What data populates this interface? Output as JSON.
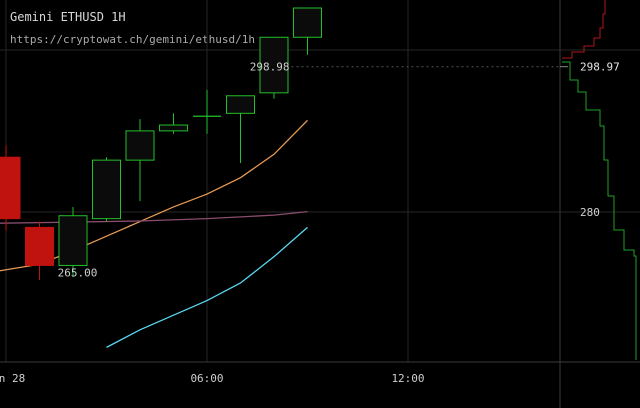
{
  "header": {
    "title": "Gemini ETHUSD 1H",
    "url": "https://cryptowat.ch/gemini/ethusd/1h"
  },
  "colors": {
    "background": "#000000",
    "up": "#22c02a",
    "down": "#c0120e",
    "ema_orange": "#e89a52",
    "ma_purple": "#8a4d6e",
    "ma_cyan": "#58d8f0",
    "grid": "#262626",
    "text": "#cfcfcf"
  },
  "chart_data": {
    "type": "candlestick",
    "price_axis": {
      "ylim": [
        248.5,
        309.0
      ],
      "tick_labels": [
        {
          "value": 280,
          "label": "280"
        }
      ]
    },
    "time_axis": {
      "tick_labels": [
        {
          "time": "00:00",
          "label": "n 28"
        },
        {
          "time": "06:00",
          "label": "06:00"
        },
        {
          "time": "12:00",
          "label": "12:00"
        }
      ]
    },
    "candles": [
      {
        "time": "00:00",
        "open": 283.5,
        "high": 285.5,
        "low": 271.0,
        "close": 273.0
      },
      {
        "time": "01:00",
        "open": 271.5,
        "high": 272.5,
        "low": 262.5,
        "close": 265.0
      },
      {
        "time": "02:00",
        "open": 265.0,
        "high": 275.0,
        "low": 263.0,
        "close": 273.5
      },
      {
        "time": "03:00",
        "open": 273.0,
        "high": 283.5,
        "low": 272.5,
        "close": 283.0
      },
      {
        "time": "04:00",
        "open": 283.0,
        "high": 290.0,
        "low": 276.0,
        "close": 288.0
      },
      {
        "time": "05:00",
        "open": 288.0,
        "high": 291.0,
        "low": 287.5,
        "close": 289.0
      },
      {
        "time": "06:00",
        "open": 290.5,
        "high": 295.0,
        "low": 287.5,
        "close": 290.5
      },
      {
        "time": "07:00",
        "open": 291.0,
        "high": 294.0,
        "low": 282.5,
        "close": 294.0
      },
      {
        "time": "08:00",
        "open": 294.5,
        "high": 304.0,
        "low": 293.5,
        "close": 304.0
      },
      {
        "time": "09:00",
        "open": 304.0,
        "high": 309.0,
        "low": 301.0,
        "close": 309.0
      }
    ],
    "annotations": [
      {
        "label": "298.98",
        "value": 298.98
      },
      {
        "label": "265.00",
        "value": 265.0
      }
    ],
    "last_price": {
      "label": "298.97",
      "value": 298.97
    },
    "series": [
      {
        "color": "orange",
        "points": [
          [
            -0.5,
            263.8
          ],
          [
            1,
            265.2
          ],
          [
            2,
            267.5
          ],
          [
            3,
            270.0
          ],
          [
            4,
            272.5
          ],
          [
            5,
            275.0
          ],
          [
            6,
            277.2
          ],
          [
            7,
            280.0
          ],
          [
            8,
            284.0
          ],
          [
            9,
            289.8
          ]
        ]
      },
      {
        "color": "purple",
        "points": [
          [
            -0.5,
            272.2
          ],
          [
            2,
            272.4
          ],
          [
            4,
            272.6
          ],
          [
            6,
            273.0
          ],
          [
            8,
            273.6
          ],
          [
            9,
            274.2
          ]
        ]
      },
      {
        "color": "cyan",
        "points": [
          [
            3,
            251.0
          ],
          [
            4,
            254.0
          ],
          [
            5,
            256.5
          ],
          [
            6,
            259.0
          ],
          [
            7,
            262.0
          ],
          [
            8,
            266.5
          ],
          [
            9,
            271.5
          ]
        ]
      }
    ]
  }
}
